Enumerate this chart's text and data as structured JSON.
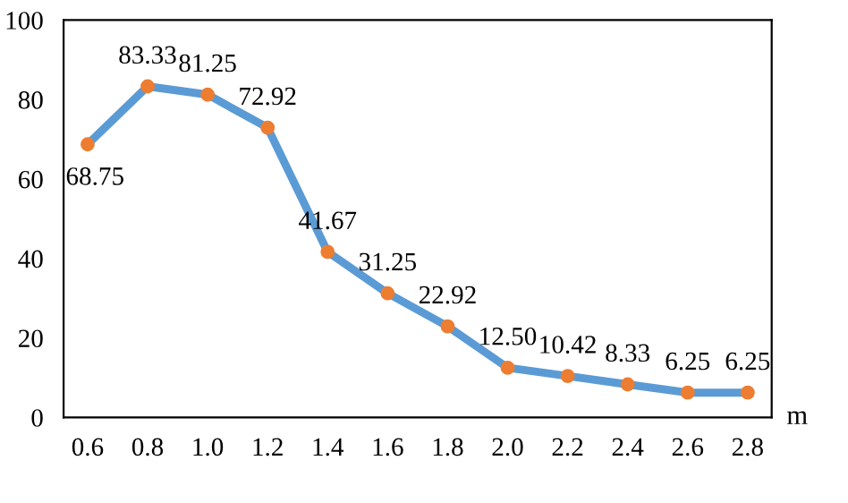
{
  "chart_data": {
    "type": "line",
    "xlabel": "m",
    "categories": [
      "0.6",
      "0.8",
      "1.0",
      "1.2",
      "1.4",
      "1.6",
      "1.8",
      "2.0",
      "2.2",
      "2.4",
      "2.6",
      "2.8"
    ],
    "series": [
      {
        "color": "#5b9bd5",
        "colors": [
          "#ed7d31",
          "#ed7d31",
          "#ed7d31",
          "#ed7d31",
          "#ed7d31",
          "#ed7d31",
          "#ed7d31",
          "#ed7d31",
          "#ed7d31",
          "#ed7d31",
          "#ed7d31",
          "#ed7d31"
        ],
        "values": [
          68.75,
          83.33,
          81.25,
          72.92,
          41.67,
          31.25,
          22.92,
          12.5,
          10.42,
          8.33,
          6.25,
          6.25
        ]
      }
    ],
    "value_labels": [
      "68.75",
      "83.33",
      "81.25",
      "72.92",
      "41.67",
      "31.25",
      "22.92",
      "12.50",
      "10.42",
      "8.33",
      "6.25",
      "6.25"
    ],
    "ylim": [
      0,
      100
    ],
    "yticks": [
      0,
      20,
      40,
      60,
      80,
      100
    ],
    "grid": false,
    "legend": false,
    "marker": "circle",
    "line_style": "solid"
  }
}
